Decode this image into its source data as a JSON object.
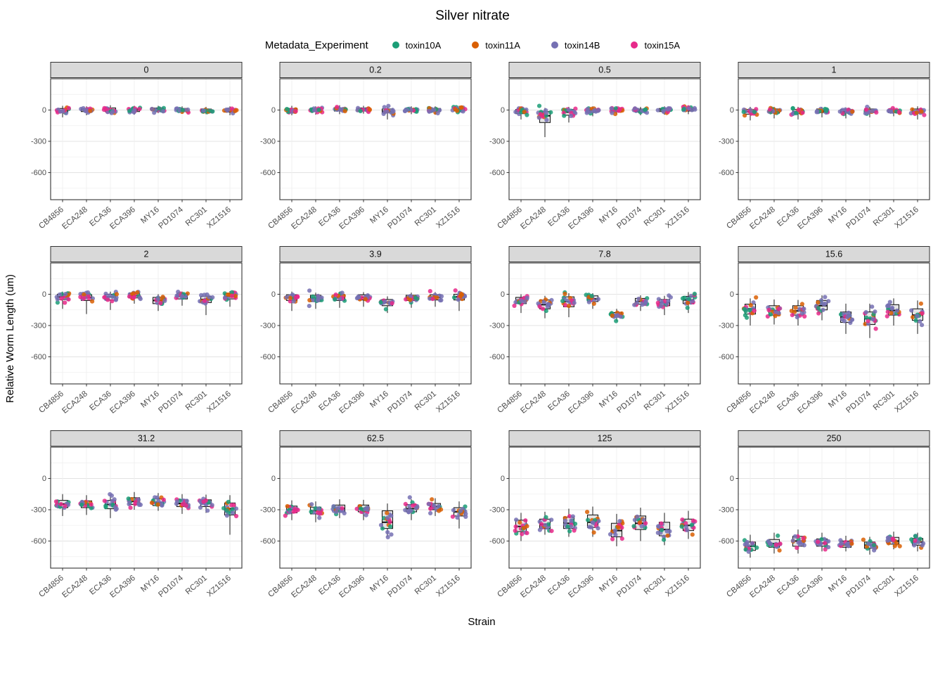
{
  "title": "Silver nitrate",
  "axes": {
    "x": "Strain",
    "y": "Relative Worm Length (um)"
  },
  "legend": {
    "title": "Metadata_Experiment"
  },
  "chart_data": {
    "type": "boxplot",
    "subtype": "faceted boxplot with jittered points",
    "title": "Silver nitrate",
    "xlabel": "Strain",
    "ylabel": "Relative Worm Length (um)",
    "legend_title": "Metadata_Experiment",
    "legend_position": "top",
    "grid": true,
    "ylim": [
      -860,
      300
    ],
    "yticks": [
      0,
      -300,
      -600
    ],
    "categories": [
      "CB4856",
      "ECA248",
      "ECA36",
      "ECA396",
      "MY16",
      "PD1074",
      "RC301",
      "XZ1516"
    ],
    "series": [
      {
        "name": "toxin10A",
        "color": "#1B9E77"
      },
      {
        "name": "toxin11A",
        "color": "#D95F02"
      },
      {
        "name": "toxin14B",
        "color": "#7570B3"
      },
      {
        "name": "toxin15A",
        "color": "#E7298A"
      }
    ],
    "stats_format": [
      "whisker_low",
      "q1",
      "median",
      "q3",
      "whisker_high"
    ],
    "facets": [
      {
        "label": "0",
        "stats": [
          [
            -70,
            -20,
            -5,
            15,
            40
          ],
          [
            -50,
            -15,
            0,
            15,
            35
          ],
          [
            -40,
            -15,
            0,
            20,
            45
          ],
          [
            -45,
            -15,
            0,
            15,
            40
          ],
          [
            -30,
            -10,
            5,
            20,
            40
          ],
          [
            -35,
            -10,
            0,
            15,
            35
          ],
          [
            -40,
            -15,
            -5,
            10,
            30
          ],
          [
            -50,
            -20,
            -5,
            10,
            35
          ]
        ]
      },
      {
        "label": "0.2",
        "stats": [
          [
            -50,
            -15,
            0,
            15,
            40
          ],
          [
            -45,
            -15,
            0,
            15,
            35
          ],
          [
            -40,
            -10,
            5,
            20,
            45
          ],
          [
            -35,
            -10,
            5,
            20,
            40
          ],
          [
            -90,
            -25,
            -10,
            10,
            30
          ],
          [
            -40,
            -10,
            0,
            15,
            35
          ],
          [
            -45,
            -15,
            0,
            15,
            35
          ],
          [
            -30,
            -10,
            5,
            20,
            40
          ]
        ]
      },
      {
        "label": "0.5",
        "stats": [
          [
            -90,
            -35,
            -15,
            5,
            30
          ],
          [
            -260,
            -120,
            -55,
            -15,
            20
          ],
          [
            -120,
            -50,
            -20,
            5,
            30
          ],
          [
            -60,
            -20,
            -5,
            10,
            35
          ],
          [
            -40,
            -15,
            0,
            15,
            35
          ],
          [
            -50,
            -20,
            -5,
            10,
            30
          ],
          [
            -45,
            -15,
            0,
            15,
            35
          ],
          [
            -40,
            -10,
            5,
            20,
            45
          ]
        ]
      },
      {
        "label": "1",
        "stats": [
          [
            -100,
            -40,
            -15,
            5,
            30
          ],
          [
            -80,
            -30,
            -10,
            10,
            30
          ],
          [
            -90,
            -35,
            -15,
            5,
            30
          ],
          [
            -70,
            -25,
            -10,
            10,
            30
          ],
          [
            -80,
            -30,
            -15,
            5,
            25
          ],
          [
            -70,
            -25,
            -10,
            10,
            30
          ],
          [
            -60,
            -25,
            -10,
            5,
            25
          ],
          [
            -90,
            -30,
            -10,
            10,
            35
          ]
        ]
      },
      {
        "label": "2",
        "stats": [
          [
            -140,
            -50,
            -25,
            0,
            25
          ],
          [
            -190,
            -60,
            -30,
            -5,
            20
          ],
          [
            -150,
            -55,
            -25,
            0,
            25
          ],
          [
            -90,
            -35,
            -15,
            10,
            30
          ],
          [
            -160,
            -90,
            -60,
            -30,
            0
          ],
          [
            -110,
            -45,
            -20,
            5,
            25
          ],
          [
            -200,
            -80,
            -50,
            -20,
            10
          ],
          [
            -120,
            -45,
            -20,
            5,
            30
          ]
        ]
      },
      {
        "label": "3.9",
        "stats": [
          [
            -160,
            -60,
            -30,
            -5,
            25
          ],
          [
            -140,
            -70,
            -40,
            -10,
            15
          ],
          [
            -130,
            -60,
            -30,
            -5,
            20
          ],
          [
            -120,
            -55,
            -30,
            -5,
            20
          ],
          [
            -180,
            -110,
            -80,
            -50,
            -20
          ],
          [
            -130,
            -60,
            -35,
            -10,
            15
          ],
          [
            -120,
            -55,
            -30,
            -5,
            20
          ],
          [
            -160,
            -55,
            -25,
            0,
            30
          ]
        ]
      },
      {
        "label": "7.8",
        "stats": [
          [
            -180,
            -90,
            -60,
            -30,
            0
          ],
          [
            -230,
            -140,
            -100,
            -55,
            -15
          ],
          [
            -220,
            -120,
            -70,
            -25,
            10
          ],
          [
            -140,
            -70,
            -45,
            -15,
            10
          ],
          [
            -260,
            -220,
            -200,
            -175,
            -140
          ],
          [
            -160,
            -95,
            -70,
            -40,
            -10
          ],
          [
            -200,
            -110,
            -80,
            -50,
            -15
          ],
          [
            -180,
            -90,
            -55,
            -20,
            20
          ]
        ]
      },
      {
        "label": "15.6",
        "stats": [
          [
            -300,
            -190,
            -140,
            -95,
            -40
          ],
          [
            -290,
            -200,
            -155,
            -110,
            -50
          ],
          [
            -300,
            -200,
            -160,
            -110,
            -55
          ],
          [
            -250,
            -150,
            -110,
            -60,
            -10
          ],
          [
            -380,
            -270,
            -220,
            -170,
            -90
          ],
          [
            -420,
            -290,
            -235,
            -170,
            -90
          ],
          [
            -300,
            -200,
            -155,
            -100,
            -40
          ],
          [
            -380,
            -250,
            -200,
            -140,
            -60
          ]
        ]
      },
      {
        "label": "31.2",
        "stats": [
          [
            -360,
            -280,
            -245,
            -210,
            -150
          ],
          [
            -350,
            -280,
            -250,
            -215,
            -160
          ],
          [
            -380,
            -290,
            -250,
            -210,
            -150
          ],
          [
            -300,
            -250,
            -220,
            -185,
            -130
          ],
          [
            -310,
            -260,
            -230,
            -195,
            -140
          ],
          [
            -340,
            -270,
            -240,
            -205,
            -150
          ],
          [
            -330,
            -270,
            -240,
            -205,
            -155
          ],
          [
            -540,
            -350,
            -290,
            -235,
            -160
          ]
        ]
      },
      {
        "label": "62.5",
        "stats": [
          [
            -400,
            -330,
            -300,
            -265,
            -210
          ],
          [
            -420,
            -340,
            -310,
            -275,
            -220
          ],
          [
            -380,
            -320,
            -290,
            -255,
            -200
          ],
          [
            -400,
            -320,
            -290,
            -255,
            -205
          ],
          [
            -560,
            -480,
            -420,
            -310,
            -240
          ],
          [
            -400,
            -320,
            -290,
            -250,
            -200
          ],
          [
            -360,
            -300,
            -270,
            -240,
            -190
          ],
          [
            -480,
            -360,
            -320,
            -280,
            -220
          ]
        ]
      },
      {
        "label": "125",
        "stats": [
          [
            -600,
            -510,
            -460,
            -400,
            -330
          ],
          [
            -540,
            -480,
            -440,
            -390,
            -320
          ],
          [
            -560,
            -480,
            -430,
            -370,
            -290
          ],
          [
            -560,
            -470,
            -420,
            -350,
            -270
          ],
          [
            -650,
            -560,
            -500,
            -430,
            -340
          ],
          [
            -600,
            -490,
            -430,
            -360,
            -280
          ],
          [
            -640,
            -550,
            -490,
            -420,
            -330
          ],
          [
            -580,
            -500,
            -450,
            -390,
            -310
          ]
        ]
      },
      {
        "label": "250",
        "stats": [
          [
            -760,
            -690,
            -650,
            -610,
            -540
          ],
          [
            -720,
            -660,
            -625,
            -585,
            -520
          ],
          [
            -720,
            -650,
            -600,
            -555,
            -490
          ],
          [
            -700,
            -650,
            -620,
            -580,
            -520
          ],
          [
            -700,
            -660,
            -635,
            -600,
            -550
          ],
          [
            -730,
            -670,
            -640,
            -610,
            -560
          ],
          [
            -680,
            -630,
            -600,
            -565,
            -510
          ],
          [
            -700,
            -640,
            -610,
            -575,
            -520
          ]
        ]
      }
    ],
    "style": {
      "point_radius": 3.1,
      "point_opacity": 0.85,
      "strip_fill": "#d9d9d9",
      "panel_border": "#333333"
    }
  }
}
